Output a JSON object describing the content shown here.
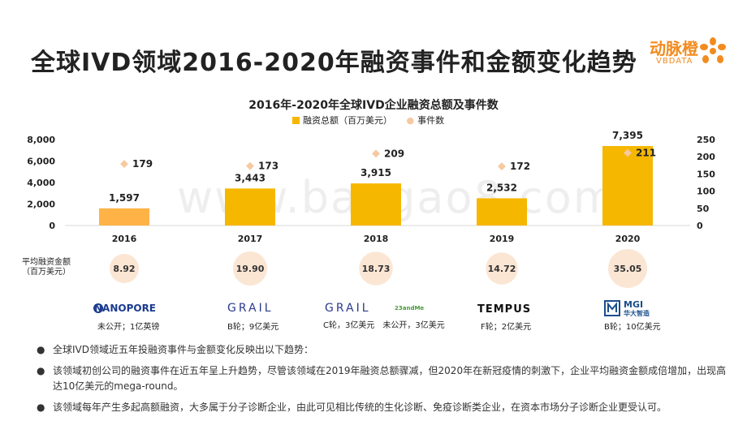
{
  "page": {
    "title": "全球IVD领域2016-2020年融资事件和金额变化趋势",
    "logo_cn": "动脉橙",
    "logo_en": "VBDATA",
    "watermark": "www.baogao8.com"
  },
  "chart_data": {
    "type": "bar",
    "title": "2016年-2020年全球IVD企业融资总额及事件数",
    "categories": [
      "2016",
      "2017",
      "2018",
      "2019",
      "2020"
    ],
    "series": [
      {
        "name": "融资总额（百万美元）",
        "type": "bar",
        "axis": "left",
        "values": [
          1597,
          3443,
          3915,
          2532,
          7395
        ],
        "color": "#f5b700"
      },
      {
        "name": "事件数",
        "type": "scatter",
        "axis": "right",
        "values": [
          179,
          173,
          209,
          172,
          211
        ],
        "color": "#f6c9a0"
      }
    ],
    "yleft": {
      "ylim": [
        0,
        8000
      ],
      "ticks": [
        "0",
        "2,000",
        "4,000",
        "6,000",
        "8,000"
      ]
    },
    "yright": {
      "ylim": [
        0,
        250
      ],
      "ticks": [
        "0",
        "50",
        "100",
        "150",
        "200",
        "250"
      ]
    },
    "bar_labels": [
      "1,597",
      "3,443",
      "3,915",
      "2,532",
      "7,395"
    ],
    "first_bar_color": "#ffb347",
    "legend_position": "top"
  },
  "average": {
    "label_line1": "平均融资金额",
    "label_line2": "（百万美元）",
    "values": [
      "8.92",
      "19.90",
      "18.73",
      "14.72",
      "35.05"
    ]
  },
  "companies": [
    {
      "logos": [
        "NANOPORE"
      ],
      "caption": "未公开；1亿英镑"
    },
    {
      "logos": [
        "GRAIL"
      ],
      "caption": "B轮；9亿美元"
    },
    {
      "logos": [
        "GRAIL",
        "23andMe"
      ],
      "caption": "C轮，3亿美元　未公开，3亿美元"
    },
    {
      "logos": [
        "TEMPUS"
      ],
      "caption": "F轮；2亿美元"
    },
    {
      "logos": [
        "MGI",
        "华大智造"
      ],
      "caption": "B轮；10亿美元"
    }
  ],
  "notes": [
    "全球IVD领域近五年投融资事件与金额变化反映出以下趋势：",
    "该领域初创公司的融资事件在近五年呈上升趋势，尽管该领域在2019年融资总额骤减，但2020年在新冠疫情的刺激下，企业平均融资金额成倍增加，出现高达10亿美元的mega-round。",
    "该领域每年产生多起高额融资，大多属于分子诊断企业，由此可见相比传统的生化诊断、免疫诊断类企业，在资本市场分子诊断企业更受认可。"
  ]
}
